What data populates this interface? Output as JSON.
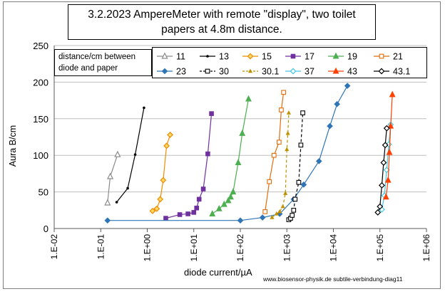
{
  "chart_data": {
    "type": "scatter",
    "title_lines": [
      "3.2.2023 AmpereMeter with remote \"display\", two toilet",
      "papers at 4.8m distance."
    ],
    "xlabel": "diode current/µA",
    "ylabel": "Aura B/cm",
    "x_scale": "log",
    "xlim": [
      0.01,
      1000000
    ],
    "ylim": [
      0,
      250
    ],
    "x_tick_labels": [
      "1.E-02",
      "1.E-01",
      "1.E+00",
      "1.E+01",
      "1.E+02",
      "1.E+03",
      "1.E+04",
      "1.E+05",
      "1.E+06"
    ],
    "x_tick_values": [
      0.01,
      0.1,
      1,
      10,
      100,
      1000,
      10000,
      100000,
      1000000
    ],
    "y_tick_labels": [
      "0",
      "50",
      "100",
      "150",
      "200",
      "250"
    ],
    "y_tick_values": [
      0,
      50,
      100,
      150,
      200,
      250
    ],
    "grid": "horizontal",
    "legend_title": [
      "distance/cm between",
      "diode and paper"
    ],
    "footer": "www.biosensor-physik.de subtile-verbindung-diag11",
    "series": [
      {
        "name": "11",
        "color": "#8c8c8c",
        "marker": "triangle-open",
        "line": "solid",
        "x": [
          0.14,
          0.16,
          0.23
        ],
        "y": [
          35,
          71,
          101
        ]
      },
      {
        "name": "13",
        "color": "#000000",
        "marker": "dot",
        "line": "solid",
        "x": [
          0.22,
          0.38,
          0.55,
          0.85
        ],
        "y": [
          36,
          55,
          101,
          165
        ]
      },
      {
        "name": "15",
        "color": "#f08c00",
        "marker": "diamond-yellow",
        "line": "solid",
        "x": [
          1.3,
          1.6,
          1.9,
          2.2,
          2.6,
          3.1
        ],
        "y": [
          24,
          27,
          40,
          66,
          113,
          128
        ]
      },
      {
        "name": "17",
        "color": "#7030a0",
        "marker": "square",
        "line": "solid",
        "x": [
          2.5,
          5,
          7.5,
          10,
          11.5,
          13,
          16,
          20,
          24
        ],
        "y": [
          14,
          19,
          20,
          22,
          28,
          40,
          54,
          102,
          157
        ]
      },
      {
        "name": "19",
        "color": "#4caf50",
        "marker": "triangle",
        "line": "solid",
        "x": [
          25,
          35,
          45,
          55,
          62,
          70,
          90,
          110,
          150
        ],
        "y": [
          20,
          27,
          33,
          38,
          43,
          50,
          90,
          130,
          177
        ]
      },
      {
        "name": "21",
        "color": "#e46c0a",
        "marker": "square-open",
        "line": "solid",
        "x": [
          340,
          420,
          530,
          680,
          760,
          850
        ],
        "y": [
          23,
          64,
          100,
          118,
          162,
          186
        ]
      },
      {
        "name": "23",
        "color": "#2e75b6",
        "marker": "diamond",
        "line": "solid",
        "x": [
          0.14,
          100,
          300,
          700,
          1400,
          2300,
          4900,
          8400,
          12000,
          20000
        ],
        "y": [
          11,
          11,
          15,
          20,
          40,
          60,
          92,
          140,
          170,
          195
        ]
      },
      {
        "name": "30",
        "color": "#000000",
        "marker": "square-open",
        "line": "dashed",
        "x": [
          1100,
          1200,
          1300,
          1400,
          1500,
          1800,
          2000,
          2200
        ],
        "y": [
          12,
          14,
          18,
          25,
          40,
          63,
          114,
          158
        ]
      },
      {
        "name": "30.1",
        "color": "#c09000",
        "marker": "triangle-small",
        "line": "dashed",
        "x": [
          480,
          600,
          700,
          820,
          930,
          1000,
          1050,
          1100
        ],
        "y": [
          15,
          20,
          23,
          30,
          48,
          108,
          130,
          158
        ]
      },
      {
        "name": "37",
        "color": "#40c8e0",
        "marker": "diamond-open",
        "line": "solid",
        "x": [
          110000,
          125000,
          140000,
          155000,
          170000
        ],
        "y": [
          26,
          45,
          80,
          115,
          142
        ]
      },
      {
        "name": "43",
        "color": "#ff4000",
        "marker": "triangle",
        "line": "solid",
        "x": [
          135000,
          150000,
          160000,
          170000,
          185000
        ],
        "y": [
          43,
          66,
          104,
          140,
          183
        ]
      },
      {
        "name": "43.1",
        "color": "#000000",
        "marker": "diamond-open",
        "line": "solid",
        "x": [
          90000,
          100000,
          110000,
          120000,
          130000,
          140000
        ],
        "y": [
          22,
          30,
          59,
          90,
          114,
          137
        ]
      }
    ]
  }
}
